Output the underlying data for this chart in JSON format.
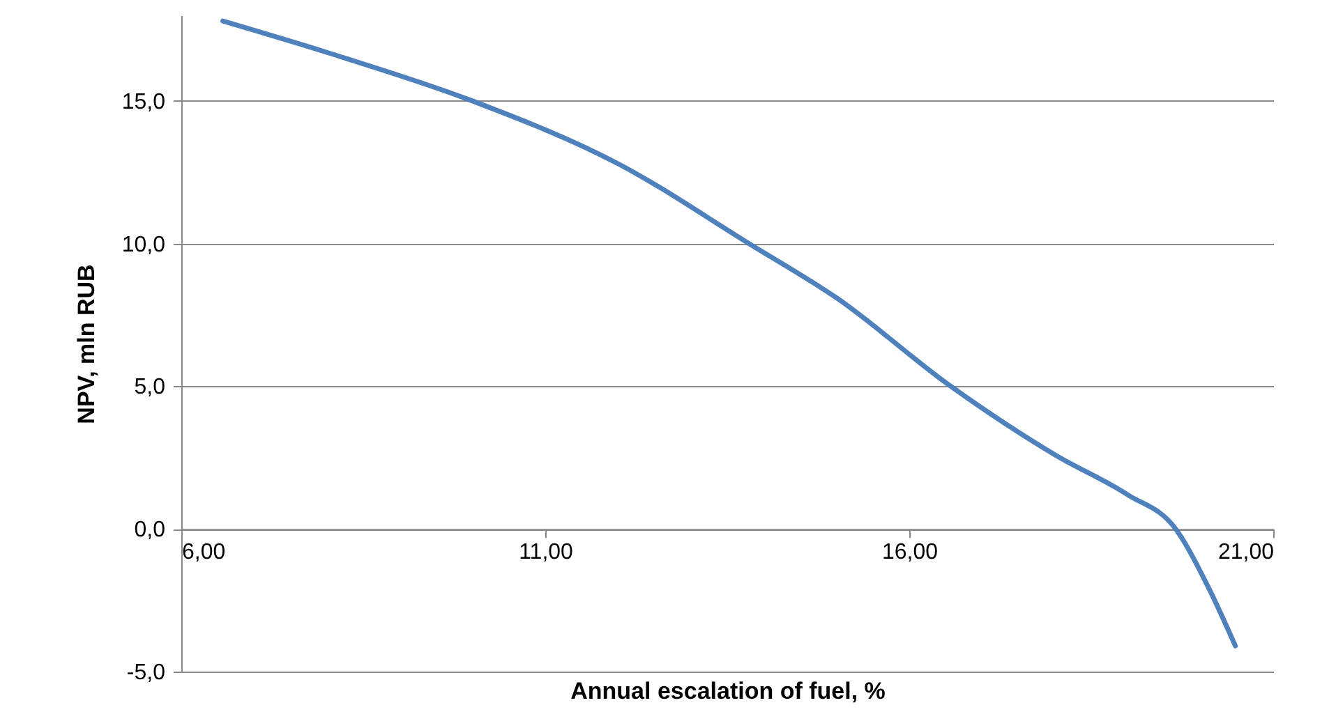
{
  "chart_data": {
    "type": "line",
    "xlabel": "Annual escalation of fuel, %",
    "ylabel": "NPV, mln RUB",
    "x": [
      6.57,
      8,
      10,
      12,
      13.8,
      15,
      16.57,
      18,
      19,
      19.66,
      20.1,
      20.48
    ],
    "series": [
      {
        "color": "#4f81bd",
        "values": [
          17.8,
          16.7,
          15.0,
          12.8,
          10.0,
          8.1,
          5.0,
          2.6,
          1.2,
          0,
          -2.0,
          -4.1
        ]
      }
    ],
    "xlim": [
      6,
      21
    ],
    "xticks": [
      {
        "value": 6,
        "label": "6,00"
      },
      {
        "value": 11,
        "label": "11,00"
      },
      {
        "value": 16,
        "label": "16,00"
      },
      {
        "value": 21,
        "label": "21,00"
      }
    ],
    "ylim": [
      -5,
      18
    ],
    "yticks": [
      {
        "value": -5,
        "label": "-5,0"
      },
      {
        "value": 0,
        "label": "0,0"
      },
      {
        "value": 5,
        "label": "5,0"
      },
      {
        "value": 10,
        "label": "10,0"
      },
      {
        "value": 15,
        "label": "15,0"
      }
    ],
    "grid": "y",
    "marker": "none",
    "line_style": "solid"
  }
}
